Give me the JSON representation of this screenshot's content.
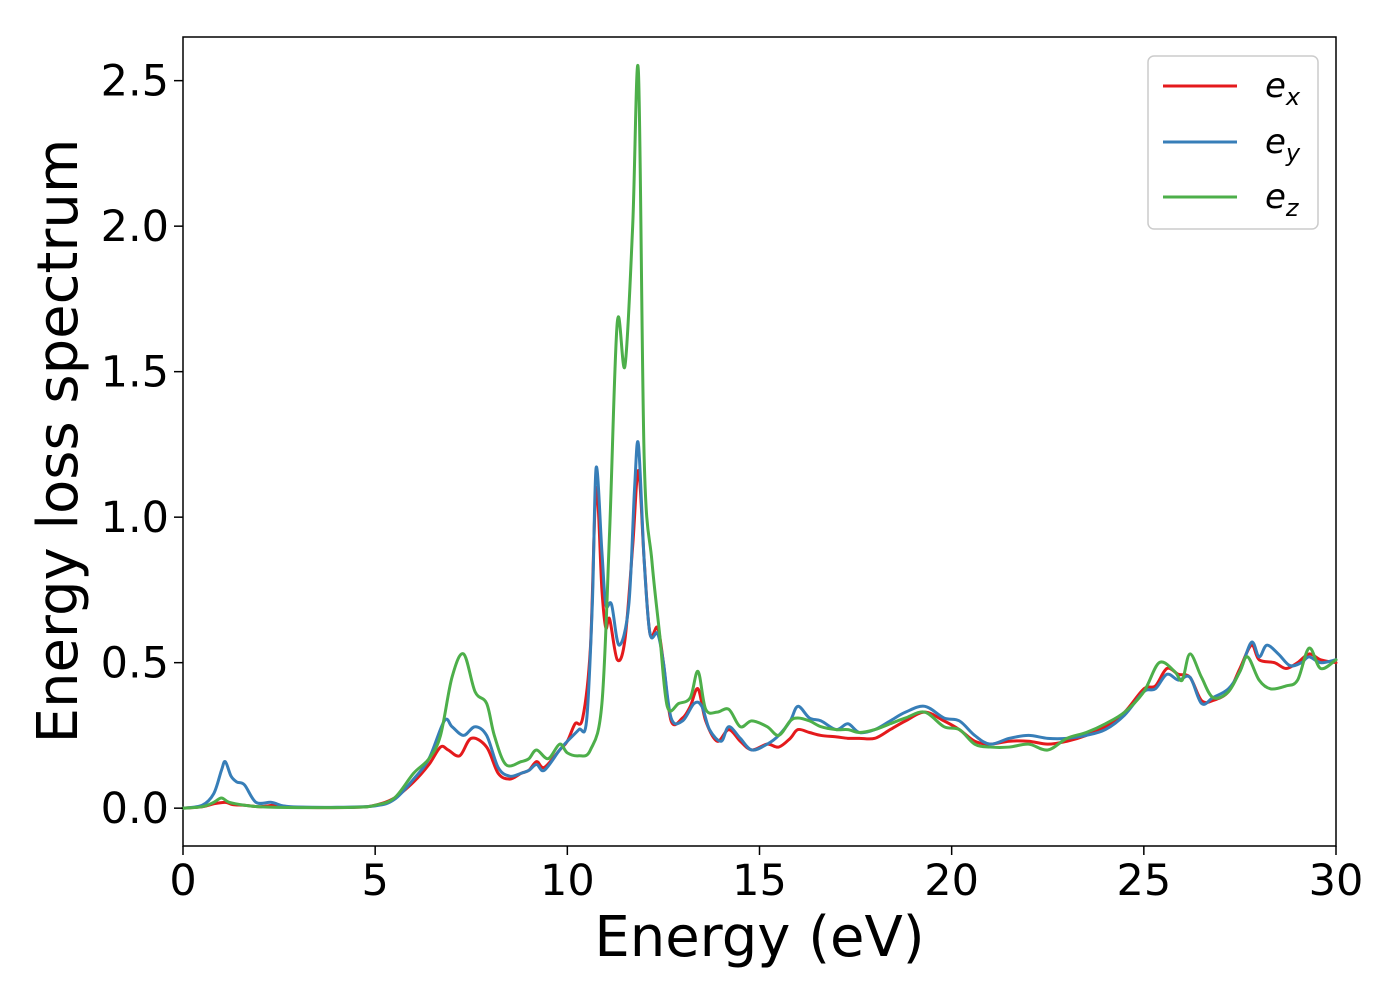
{
  "chart_data": {
    "type": "line",
    "title": "",
    "xlabel": "Energy (eV)",
    "ylabel": "Energy loss spectrum",
    "xlim": [
      0,
      30
    ],
    "ylim": [
      -0.13,
      2.65
    ],
    "xticks": [
      0,
      5,
      10,
      15,
      20,
      25,
      30
    ],
    "xtick_labels": [
      "0",
      "5",
      "10",
      "15",
      "20",
      "25",
      "30"
    ],
    "yticks": [
      0.0,
      0.5,
      1.0,
      1.5,
      2.0,
      2.5
    ],
    "ytick_labels": [
      "0.0",
      "0.5",
      "1.0",
      "1.5",
      "2.0",
      "2.5"
    ],
    "grid": false,
    "legend_position": "top-right",
    "series": [
      {
        "name": "e_x",
        "label_base": "e",
        "label_sub": "x",
        "color": "#e41a1c",
        "points": [
          [
            0,
            0
          ],
          [
            0.5,
            0.005
          ],
          [
            0.8,
            0.015
          ],
          [
            1.1,
            0.02
          ],
          [
            1.3,
            0.012
          ],
          [
            1.6,
            0.01
          ],
          [
            2.0,
            0.005
          ],
          [
            2.4,
            0.01
          ],
          [
            2.8,
            0.004
          ],
          [
            3.5,
            0.002
          ],
          [
            4.5,
            0.003
          ],
          [
            5.0,
            0.01
          ],
          [
            5.5,
            0.035
          ],
          [
            6.0,
            0.09
          ],
          [
            6.4,
            0.15
          ],
          [
            6.7,
            0.21
          ],
          [
            6.9,
            0.2
          ],
          [
            7.2,
            0.18
          ],
          [
            7.5,
            0.24
          ],
          [
            7.9,
            0.21
          ],
          [
            8.2,
            0.12
          ],
          [
            8.5,
            0.1
          ],
          [
            8.8,
            0.12
          ],
          [
            9.0,
            0.13
          ],
          [
            9.2,
            0.16
          ],
          [
            9.4,
            0.14
          ],
          [
            9.8,
            0.2
          ],
          [
            10.0,
            0.23
          ],
          [
            10.2,
            0.29
          ],
          [
            10.4,
            0.31
          ],
          [
            10.6,
            0.55
          ],
          [
            10.75,
            1.1
          ],
          [
            10.9,
            0.75
          ],
          [
            11.0,
            0.62
          ],
          [
            11.1,
            0.65
          ],
          [
            11.3,
            0.51
          ],
          [
            11.5,
            0.58
          ],
          [
            11.7,
            0.9
          ],
          [
            11.85,
            1.16
          ],
          [
            12.0,
            0.85
          ],
          [
            12.15,
            0.6
          ],
          [
            12.35,
            0.62
          ],
          [
            12.5,
            0.5
          ],
          [
            12.7,
            0.3
          ],
          [
            13.0,
            0.31
          ],
          [
            13.2,
            0.35
          ],
          [
            13.4,
            0.41
          ],
          [
            13.6,
            0.3
          ],
          [
            13.9,
            0.23
          ],
          [
            14.2,
            0.27
          ],
          [
            14.5,
            0.23
          ],
          [
            14.8,
            0.2
          ],
          [
            15.2,
            0.22
          ],
          [
            15.5,
            0.21
          ],
          [
            15.8,
            0.24
          ],
          [
            16.0,
            0.27
          ],
          [
            16.3,
            0.26
          ],
          [
            16.6,
            0.25
          ],
          [
            17.0,
            0.245
          ],
          [
            17.3,
            0.24
          ],
          [
            17.6,
            0.24
          ],
          [
            18.0,
            0.24
          ],
          [
            18.4,
            0.27
          ],
          [
            18.8,
            0.3
          ],
          [
            19.3,
            0.33
          ],
          [
            19.8,
            0.3
          ],
          [
            20.2,
            0.27
          ],
          [
            20.6,
            0.23
          ],
          [
            21.0,
            0.22
          ],
          [
            21.5,
            0.23
          ],
          [
            22.0,
            0.23
          ],
          [
            22.5,
            0.22
          ],
          [
            23.0,
            0.23
          ],
          [
            23.5,
            0.25
          ],
          [
            24.0,
            0.28
          ],
          [
            24.5,
            0.33
          ],
          [
            25.0,
            0.41
          ],
          [
            25.3,
            0.42
          ],
          [
            25.6,
            0.48
          ],
          [
            25.9,
            0.46
          ],
          [
            26.2,
            0.45
          ],
          [
            26.5,
            0.37
          ],
          [
            26.8,
            0.37
          ],
          [
            27.2,
            0.4
          ],
          [
            27.5,
            0.48
          ],
          [
            27.8,
            0.56
          ],
          [
            28.0,
            0.51
          ],
          [
            28.4,
            0.5
          ],
          [
            28.7,
            0.48
          ],
          [
            29.0,
            0.5
          ],
          [
            29.3,
            0.53
          ],
          [
            29.6,
            0.51
          ],
          [
            30.0,
            0.5
          ]
        ]
      },
      {
        "name": "e_y",
        "label_base": "e",
        "label_sub": "y",
        "color": "#377eb8",
        "points": [
          [
            0,
            0
          ],
          [
            0.5,
            0.01
          ],
          [
            0.8,
            0.05
          ],
          [
            1.0,
            0.13
          ],
          [
            1.1,
            0.16
          ],
          [
            1.25,
            0.11
          ],
          [
            1.4,
            0.09
          ],
          [
            1.6,
            0.08
          ],
          [
            1.9,
            0.02
          ],
          [
            2.3,
            0.02
          ],
          [
            2.6,
            0.008
          ],
          [
            3.0,
            0.004
          ],
          [
            4.0,
            0.003
          ],
          [
            5.0,
            0.008
          ],
          [
            5.5,
            0.03
          ],
          [
            6.0,
            0.1
          ],
          [
            6.4,
            0.17
          ],
          [
            6.8,
            0.3
          ],
          [
            7.0,
            0.28
          ],
          [
            7.3,
            0.25
          ],
          [
            7.6,
            0.28
          ],
          [
            7.9,
            0.25
          ],
          [
            8.2,
            0.14
          ],
          [
            8.5,
            0.11
          ],
          [
            8.8,
            0.12
          ],
          [
            9.0,
            0.13
          ],
          [
            9.2,
            0.15
          ],
          [
            9.4,
            0.13
          ],
          [
            9.8,
            0.2
          ],
          [
            10.0,
            0.23
          ],
          [
            10.3,
            0.27
          ],
          [
            10.5,
            0.3
          ],
          [
            10.65,
            0.7
          ],
          [
            10.75,
            1.17
          ],
          [
            10.9,
            0.88
          ],
          [
            11.0,
            0.7
          ],
          [
            11.15,
            0.7
          ],
          [
            11.35,
            0.56
          ],
          [
            11.6,
            0.7
          ],
          [
            11.75,
            1.1
          ],
          [
            11.85,
            1.25
          ],
          [
            12.0,
            0.85
          ],
          [
            12.15,
            0.6
          ],
          [
            12.35,
            0.6
          ],
          [
            12.5,
            0.5
          ],
          [
            12.7,
            0.31
          ],
          [
            13.0,
            0.3
          ],
          [
            13.3,
            0.36
          ],
          [
            13.5,
            0.35
          ],
          [
            13.7,
            0.27
          ],
          [
            14.0,
            0.23
          ],
          [
            14.2,
            0.28
          ],
          [
            14.5,
            0.24
          ],
          [
            14.8,
            0.2
          ],
          [
            15.2,
            0.22
          ],
          [
            15.5,
            0.25
          ],
          [
            15.8,
            0.3
          ],
          [
            16.0,
            0.35
          ],
          [
            16.3,
            0.31
          ],
          [
            16.6,
            0.3
          ],
          [
            17.0,
            0.27
          ],
          [
            17.3,
            0.29
          ],
          [
            17.6,
            0.26
          ],
          [
            18.0,
            0.27
          ],
          [
            18.4,
            0.3
          ],
          [
            18.8,
            0.33
          ],
          [
            19.3,
            0.35
          ],
          [
            19.8,
            0.31
          ],
          [
            20.2,
            0.3
          ],
          [
            20.6,
            0.25
          ],
          [
            21.0,
            0.22
          ],
          [
            21.5,
            0.24
          ],
          [
            22.0,
            0.25
          ],
          [
            22.5,
            0.24
          ],
          [
            23.0,
            0.24
          ],
          [
            23.5,
            0.25
          ],
          [
            24.0,
            0.27
          ],
          [
            24.5,
            0.32
          ],
          [
            25.0,
            0.4
          ],
          [
            25.3,
            0.41
          ],
          [
            25.6,
            0.46
          ],
          [
            25.9,
            0.44
          ],
          [
            26.2,
            0.45
          ],
          [
            26.5,
            0.36
          ],
          [
            26.8,
            0.38
          ],
          [
            27.2,
            0.41
          ],
          [
            27.5,
            0.47
          ],
          [
            27.8,
            0.57
          ],
          [
            28.0,
            0.52
          ],
          [
            28.2,
            0.56
          ],
          [
            28.5,
            0.53
          ],
          [
            28.8,
            0.49
          ],
          [
            29.1,
            0.5
          ],
          [
            29.3,
            0.52
          ],
          [
            29.6,
            0.5
          ],
          [
            30.0,
            0.51
          ]
        ]
      },
      {
        "name": "e_z",
        "label_base": "e",
        "label_sub": "z",
        "color": "#4daf4a",
        "points": [
          [
            0,
            0
          ],
          [
            0.5,
            0.005
          ],
          [
            0.8,
            0.02
          ],
          [
            1.0,
            0.035
          ],
          [
            1.2,
            0.02
          ],
          [
            1.6,
            0.01
          ],
          [
            2.0,
            0.005
          ],
          [
            3.0,
            0.002
          ],
          [
            4.5,
            0.003
          ],
          [
            5.0,
            0.01
          ],
          [
            5.5,
            0.035
          ],
          [
            6.0,
            0.12
          ],
          [
            6.4,
            0.17
          ],
          [
            6.7,
            0.25
          ],
          [
            7.0,
            0.45
          ],
          [
            7.3,
            0.53
          ],
          [
            7.6,
            0.4
          ],
          [
            7.9,
            0.36
          ],
          [
            8.1,
            0.25
          ],
          [
            8.4,
            0.15
          ],
          [
            8.8,
            0.16
          ],
          [
            9.0,
            0.17
          ],
          [
            9.2,
            0.2
          ],
          [
            9.5,
            0.17
          ],
          [
            9.8,
            0.22
          ],
          [
            10.0,
            0.19
          ],
          [
            10.3,
            0.18
          ],
          [
            10.6,
            0.2
          ],
          [
            10.9,
            0.36
          ],
          [
            11.1,
            0.95
          ],
          [
            11.3,
            1.67
          ],
          [
            11.5,
            1.52
          ],
          [
            11.7,
            2.0
          ],
          [
            11.85,
            2.53
          ],
          [
            12.0,
            1.2
          ],
          [
            12.2,
            0.85
          ],
          [
            12.4,
            0.6
          ],
          [
            12.6,
            0.35
          ],
          [
            12.9,
            0.36
          ],
          [
            13.2,
            0.38
          ],
          [
            13.4,
            0.47
          ],
          [
            13.6,
            0.34
          ],
          [
            13.9,
            0.33
          ],
          [
            14.2,
            0.34
          ],
          [
            14.5,
            0.28
          ],
          [
            14.8,
            0.3
          ],
          [
            15.2,
            0.28
          ],
          [
            15.5,
            0.25
          ],
          [
            15.8,
            0.3
          ],
          [
            16.0,
            0.31
          ],
          [
            16.3,
            0.3
          ],
          [
            16.6,
            0.28
          ],
          [
            17.0,
            0.27
          ],
          [
            17.3,
            0.27
          ],
          [
            17.6,
            0.26
          ],
          [
            18.0,
            0.27
          ],
          [
            18.4,
            0.29
          ],
          [
            18.8,
            0.31
          ],
          [
            19.3,
            0.33
          ],
          [
            19.8,
            0.28
          ],
          [
            20.2,
            0.27
          ],
          [
            20.6,
            0.22
          ],
          [
            21.0,
            0.21
          ],
          [
            21.5,
            0.21
          ],
          [
            22.0,
            0.22
          ],
          [
            22.5,
            0.2
          ],
          [
            23.0,
            0.24
          ],
          [
            23.5,
            0.26
          ],
          [
            24.0,
            0.29
          ],
          [
            24.5,
            0.33
          ],
          [
            25.0,
            0.4
          ],
          [
            25.4,
            0.5
          ],
          [
            25.8,
            0.47
          ],
          [
            26.0,
            0.44
          ],
          [
            26.2,
            0.53
          ],
          [
            26.5,
            0.45
          ],
          [
            26.8,
            0.38
          ],
          [
            27.2,
            0.4
          ],
          [
            27.5,
            0.47
          ],
          [
            27.7,
            0.52
          ],
          [
            28.0,
            0.44
          ],
          [
            28.3,
            0.41
          ],
          [
            28.7,
            0.42
          ],
          [
            29.0,
            0.44
          ],
          [
            29.3,
            0.55
          ],
          [
            29.6,
            0.48
          ],
          [
            30.0,
            0.51
          ]
        ]
      }
    ]
  }
}
